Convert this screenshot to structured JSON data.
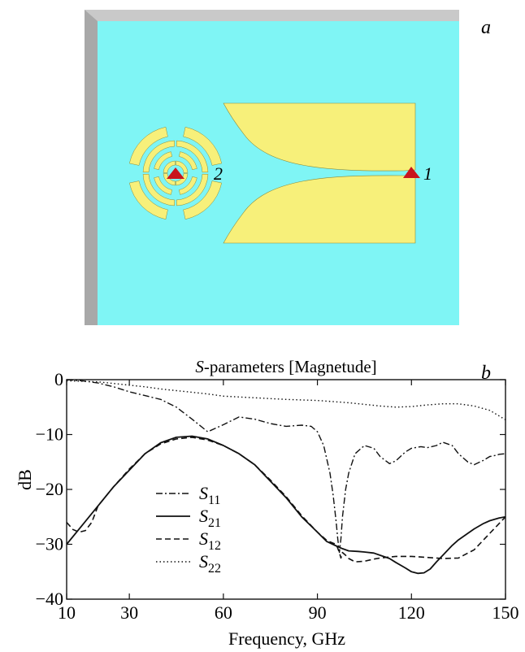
{
  "panel_a": {
    "label": "a",
    "port_labels": [
      "1",
      "2"
    ],
    "colors": {
      "substrate": "#7ff5f5",
      "metal": "#f7f07a",
      "port": "#c8141e",
      "frame": "#bfbfbf"
    }
  },
  "chart_data": {
    "type": "line",
    "panel_label": "b",
    "title": "S-parameters [Magnetude]",
    "title_italic_prefix": "S",
    "title_rest": "-parameters [Magnetude]",
    "xlabel": "Frequency, GHz",
    "ylabel": "dB",
    "xlim": [
      10,
      150
    ],
    "ylim": [
      -40,
      0
    ],
    "xticks": [
      10,
      30,
      60,
      90,
      120,
      150
    ],
    "xtick_labels": [
      "10",
      "30",
      "60",
      "90",
      "120",
      "150"
    ],
    "yticks": [
      0,
      -10,
      -20,
      -30,
      -40
    ],
    "ytick_labels": [
      "0",
      "−10",
      "−20",
      "−30",
      "−40"
    ],
    "grid": false,
    "legend_position": "lower-left",
    "series": [
      {
        "name": "S11",
        "legend_main": "S",
        "legend_sub": "11",
        "style": "dashdot",
        "x": [
          10,
          12,
          15,
          20,
          25,
          30,
          35,
          40,
          45,
          50,
          55,
          60,
          65,
          70,
          75,
          80,
          85,
          88,
          90,
          92,
          94,
          95,
          96,
          96.5,
          97,
          97.5,
          98,
          99,
          100,
          102,
          105,
          108,
          110,
          113,
          115,
          118,
          120,
          123,
          125,
          128,
          130,
          133,
          135,
          138,
          140,
          143,
          145,
          147,
          148,
          150
        ],
        "y": [
          0,
          -0.1,
          -0.2,
          -0.6,
          -1.3,
          -2.2,
          -2.9,
          -3.6,
          -5.0,
          -7.2,
          -9.5,
          -8.2,
          -6.8,
          -7.2,
          -8.0,
          -8.5,
          -8.3,
          -8.5,
          -9.5,
          -12,
          -17,
          -21,
          -26,
          -29,
          -31.5,
          -29,
          -25,
          -20,
          -17,
          -13.5,
          -12,
          -12.5,
          -14,
          -15.3,
          -14.8,
          -13.2,
          -12.5,
          -12.2,
          -12.4,
          -12,
          -11.4,
          -12,
          -13.5,
          -15,
          -15.5,
          -14.7,
          -14,
          -13.8,
          -13.6,
          -13.5
        ]
      },
      {
        "name": "S21",
        "legend_main": "S",
        "legend_sub": "21",
        "style": "solid",
        "x": [
          10,
          15,
          20,
          25,
          30,
          35,
          40,
          45,
          50,
          55,
          60,
          65,
          70,
          75,
          80,
          85,
          90,
          93,
          96,
          98,
          100,
          103,
          105,
          108,
          110,
          113,
          115,
          118,
          120,
          122,
          124,
          126,
          128,
          130,
          133,
          135,
          138,
          140,
          143,
          145,
          148,
          150
        ],
        "y": [
          -30,
          -26.5,
          -23,
          -19.5,
          -16.5,
          -13.5,
          -11.5,
          -10.5,
          -10.3,
          -10.8,
          -12,
          -13.5,
          -15.5,
          -18.5,
          -21.5,
          -25,
          -27.8,
          -29.5,
          -30.3,
          -30.8,
          -31.2,
          -31.3,
          -31.4,
          -31.6,
          -32,
          -32.6,
          -33.3,
          -34.3,
          -35,
          -35.3,
          -35.2,
          -34.5,
          -33.2,
          -32,
          -30.2,
          -29.2,
          -28,
          -27.2,
          -26.2,
          -25.7,
          -25.2,
          -25
        ]
      },
      {
        "name": "S12",
        "legend_main": "S",
        "legend_sub": "12",
        "style": "dashed",
        "x": [
          10,
          12,
          14,
          16,
          18,
          20,
          25,
          30,
          35,
          40,
          45,
          50,
          55,
          60,
          65,
          70,
          75,
          80,
          85,
          90,
          93,
          95,
          96,
          97,
          97.5,
          98,
          99,
          100,
          102,
          105,
          108,
          110,
          115,
          120,
          125,
          130,
          135,
          140,
          145,
          150
        ],
        "y": [
          -26,
          -27.3,
          -27.8,
          -27.5,
          -26,
          -23,
          -19.5,
          -16.3,
          -13.5,
          -11.7,
          -10.8,
          -10.5,
          -11,
          -12,
          -13.5,
          -15.5,
          -18.3,
          -21.3,
          -24.8,
          -27.8,
          -29.3,
          -29.8,
          -30,
          -31.5,
          -32.5,
          -31.5,
          -32,
          -32.6,
          -33.2,
          -33.1,
          -32.7,
          -32.5,
          -32.2,
          -32.2,
          -32.4,
          -32.6,
          -32.5,
          -31,
          -28,
          -25
        ]
      },
      {
        "name": "S22",
        "legend_main": "S",
        "legend_sub": "22",
        "style": "dotted",
        "x": [
          10,
          15,
          20,
          25,
          30,
          35,
          40,
          45,
          50,
          55,
          60,
          70,
          80,
          90,
          100,
          110,
          115,
          120,
          125,
          130,
          135,
          140,
          145,
          150
        ],
        "y": [
          -0.2,
          -0.3,
          -0.4,
          -0.7,
          -1.0,
          -1.3,
          -1.7,
          -2.0,
          -2.3,
          -2.6,
          -3.0,
          -3.3,
          -3.6,
          -3.8,
          -4.2,
          -4.8,
          -5.0,
          -4.9,
          -4.6,
          -4.4,
          -4.4,
          -4.8,
          -5.6,
          -7.3
        ]
      }
    ]
  }
}
